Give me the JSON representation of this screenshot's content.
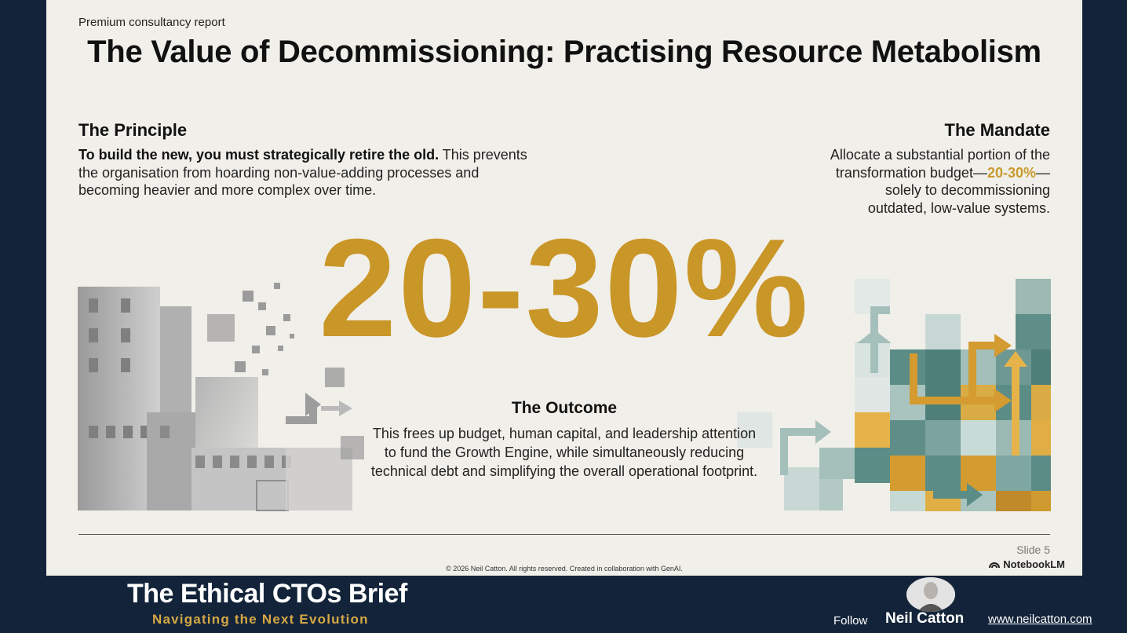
{
  "slide": {
    "kicker": "Premium consultancy report",
    "title": "The Value of Decommissioning: Practising Resource Metabolism",
    "principle": {
      "heading": "The Principle",
      "bold_lead": "To build the new, you must strategically retire the old.",
      "body": " This prevents the organisation from hoarding non-value-adding processes and becoming heavier and more complex over time."
    },
    "mandate": {
      "heading": "The Mandate",
      "text_before": "Allocate a substantial portion of the transformation budget—",
      "highlight": "20-30%",
      "text_after": "—solely to decommissioning outdated, low-value systems."
    },
    "big_stat": "20-30%",
    "outcome": {
      "heading": "The Outcome",
      "body": "This frees up budget, human capital, and leadership attention to fund the Growth Engine, while simultaneously reducing technical debt and simplifying the overall operational footprint."
    },
    "slide_number": "Slide 5",
    "copyright": "© 2026 Neil Catton. All rights reserved. Created in collaboration with GenAI.",
    "watermark": "NotebookLM"
  },
  "footer": {
    "brand_title": "The Ethical CTOs Brief",
    "brand_subtitle": "Navigating the Next Evolution",
    "follow_label": "Follow",
    "author": "Neil Catton",
    "website": "www.neilcatton.com"
  },
  "colors": {
    "accent_gold": "#c99628",
    "teal": "#4f7f79",
    "background": "#13243a",
    "slide_bg": "#f1efe9"
  },
  "icons": [
    "notebooklm-icon",
    "crumbling-building-illustration",
    "pathways-blocks-illustration",
    "author-avatar"
  ]
}
